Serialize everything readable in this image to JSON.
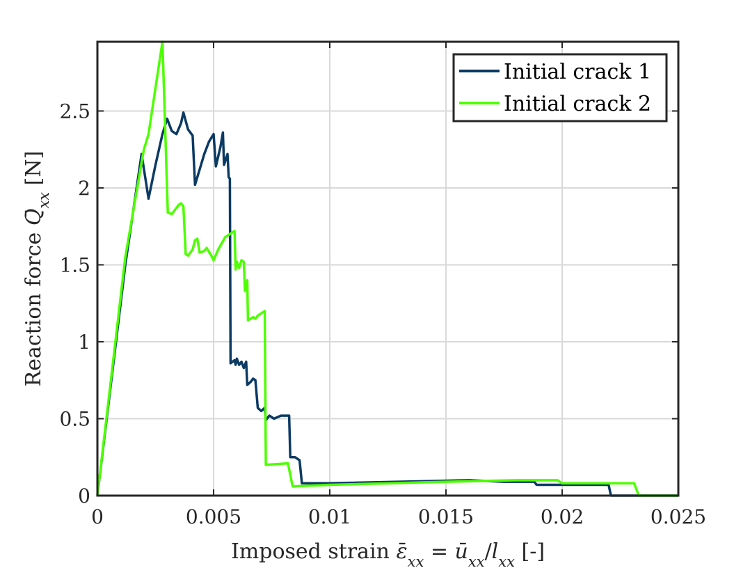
{
  "chart_data": {
    "type": "line",
    "xlabel": {
      "prefix": "Imposed strain ",
      "eps": "ε",
      "eps_bar": "̄",
      "sub_xx": "xx",
      "eq": " = ",
      "u": "u",
      "u_bar": "̄",
      "slash": "/",
      "l": "l",
      "suffix": " [-]"
    },
    "ylabel": {
      "prefix": "Reaction force ",
      "Q": "Q",
      "Q_bar": "̄",
      "sub_xx": "xx",
      "suffix": " [N]"
    },
    "xlim": [
      0,
      0.025
    ],
    "ylim": [
      0,
      2.95
    ],
    "xticks": [
      {
        "value": 0,
        "label": "0"
      },
      {
        "value": 0.005,
        "label": "0.005"
      },
      {
        "value": 0.01,
        "label": "0.01"
      },
      {
        "value": 0.015,
        "label": "0.015"
      },
      {
        "value": 0.02,
        "label": "0.02"
      },
      {
        "value": 0.025,
        "label": "0.025"
      }
    ],
    "yticks": [
      {
        "value": 0,
        "label": "0"
      },
      {
        "value": 0.5,
        "label": "0.5"
      },
      {
        "value": 1,
        "label": "1"
      },
      {
        "value": 1.5,
        "label": "1.5"
      },
      {
        "value": 2,
        "label": "2"
      },
      {
        "value": 2.5,
        "label": "2.5"
      }
    ],
    "grid": true,
    "legend_position": "top-right",
    "series": [
      {
        "name": "Initial crack 1",
        "color": "#0b3a63",
        "points": [
          [
            0,
            0
          ],
          [
            0.0012,
            1.5
          ],
          [
            0.0019,
            2.22
          ],
          [
            0.0022,
            1.93
          ],
          [
            0.0025,
            2.15
          ],
          [
            0.0028,
            2.35
          ],
          [
            0.003,
            2.45
          ],
          [
            0.0032,
            2.37
          ],
          [
            0.0034,
            2.35
          ],
          [
            0.0036,
            2.42
          ],
          [
            0.0037,
            2.49
          ],
          [
            0.0039,
            2.38
          ],
          [
            0.0041,
            2.34
          ],
          [
            0.0042,
            2.02
          ],
          [
            0.0044,
            2.12
          ],
          [
            0.0046,
            2.22
          ],
          [
            0.0048,
            2.3
          ],
          [
            0.005,
            2.35
          ],
          [
            0.0051,
            2.14
          ],
          [
            0.0053,
            2.27
          ],
          [
            0.0054,
            2.36
          ],
          [
            0.00545,
            2.15
          ],
          [
            0.0056,
            2.22
          ],
          [
            0.00565,
            2.07
          ],
          [
            0.0057,
            2.06
          ],
          [
            0.00573,
            0.86
          ],
          [
            0.0059,
            0.88
          ],
          [
            0.00595,
            0.85
          ],
          [
            0.006,
            0.89
          ],
          [
            0.0061,
            0.85
          ],
          [
            0.0062,
            0.87
          ],
          [
            0.0063,
            0.83
          ],
          [
            0.0064,
            0.87
          ],
          [
            0.00645,
            0.72
          ],
          [
            0.0066,
            0.74
          ],
          [
            0.0067,
            0.76
          ],
          [
            0.0068,
            0.75
          ],
          [
            0.0069,
            0.57
          ],
          [
            0.00705,
            0.55
          ],
          [
            0.0072,
            0.57
          ],
          [
            0.00725,
            0.49
          ],
          [
            0.0074,
            0.52
          ],
          [
            0.0076,
            0.5
          ],
          [
            0.0079,
            0.52
          ],
          [
            0.00825,
            0.52
          ],
          [
            0.0083,
            0.25
          ],
          [
            0.0085,
            0.25
          ],
          [
            0.0087,
            0.23
          ],
          [
            0.0088,
            0.08
          ],
          [
            0.01,
            0.08
          ],
          [
            0.016,
            0.1
          ],
          [
            0.0175,
            0.09
          ],
          [
            0.0188,
            0.09
          ],
          [
            0.0189,
            0.07
          ],
          [
            0.022,
            0.07
          ],
          [
            0.0221,
            0
          ],
          [
            0.025,
            0
          ]
        ]
      },
      {
        "name": "Initial crack 2",
        "color": "#4dff00",
        "points": [
          [
            0,
            0
          ],
          [
            0.0012,
            1.55
          ],
          [
            0.002,
            2.25
          ],
          [
            0.0022,
            2.35
          ],
          [
            0.0028,
            2.95
          ],
          [
            0.00303,
            1.84
          ],
          [
            0.0032,
            1.83
          ],
          [
            0.0035,
            1.89
          ],
          [
            0.0036,
            1.9
          ],
          [
            0.0037,
            1.88
          ],
          [
            0.0038,
            1.57
          ],
          [
            0.0039,
            1.56
          ],
          [
            0.0041,
            1.6
          ],
          [
            0.0042,
            1.66
          ],
          [
            0.0043,
            1.67
          ],
          [
            0.0044,
            1.58
          ],
          [
            0.0046,
            1.59
          ],
          [
            0.0047,
            1.61
          ],
          [
            0.0049,
            1.56
          ],
          [
            0.005,
            1.53
          ],
          [
            0.0052,
            1.6
          ],
          [
            0.0055,
            1.68
          ],
          [
            0.0059,
            1.72
          ],
          [
            0.00595,
            1.47
          ],
          [
            0.006,
            1.52
          ],
          [
            0.0061,
            1.48
          ],
          [
            0.0062,
            1.53
          ],
          [
            0.0063,
            1.52
          ],
          [
            0.00635,
            1.33
          ],
          [
            0.00645,
            1.4
          ],
          [
            0.00648,
            1.14
          ],
          [
            0.0066,
            1.15
          ],
          [
            0.0067,
            1.16
          ],
          [
            0.0068,
            1.15
          ],
          [
            0.0069,
            1.17
          ],
          [
            0.0072,
            1.2
          ],
          [
            0.00725,
            0.2
          ],
          [
            0.0082,
            0.21
          ],
          [
            0.0084,
            0.06
          ],
          [
            0.01,
            0.07
          ],
          [
            0.015,
            0.09
          ],
          [
            0.018,
            0.1
          ],
          [
            0.0198,
            0.1
          ],
          [
            0.02,
            0.08
          ],
          [
            0.0231,
            0.08
          ],
          [
            0.0233,
            0
          ],
          [
            0.025,
            0
          ]
        ]
      }
    ]
  }
}
